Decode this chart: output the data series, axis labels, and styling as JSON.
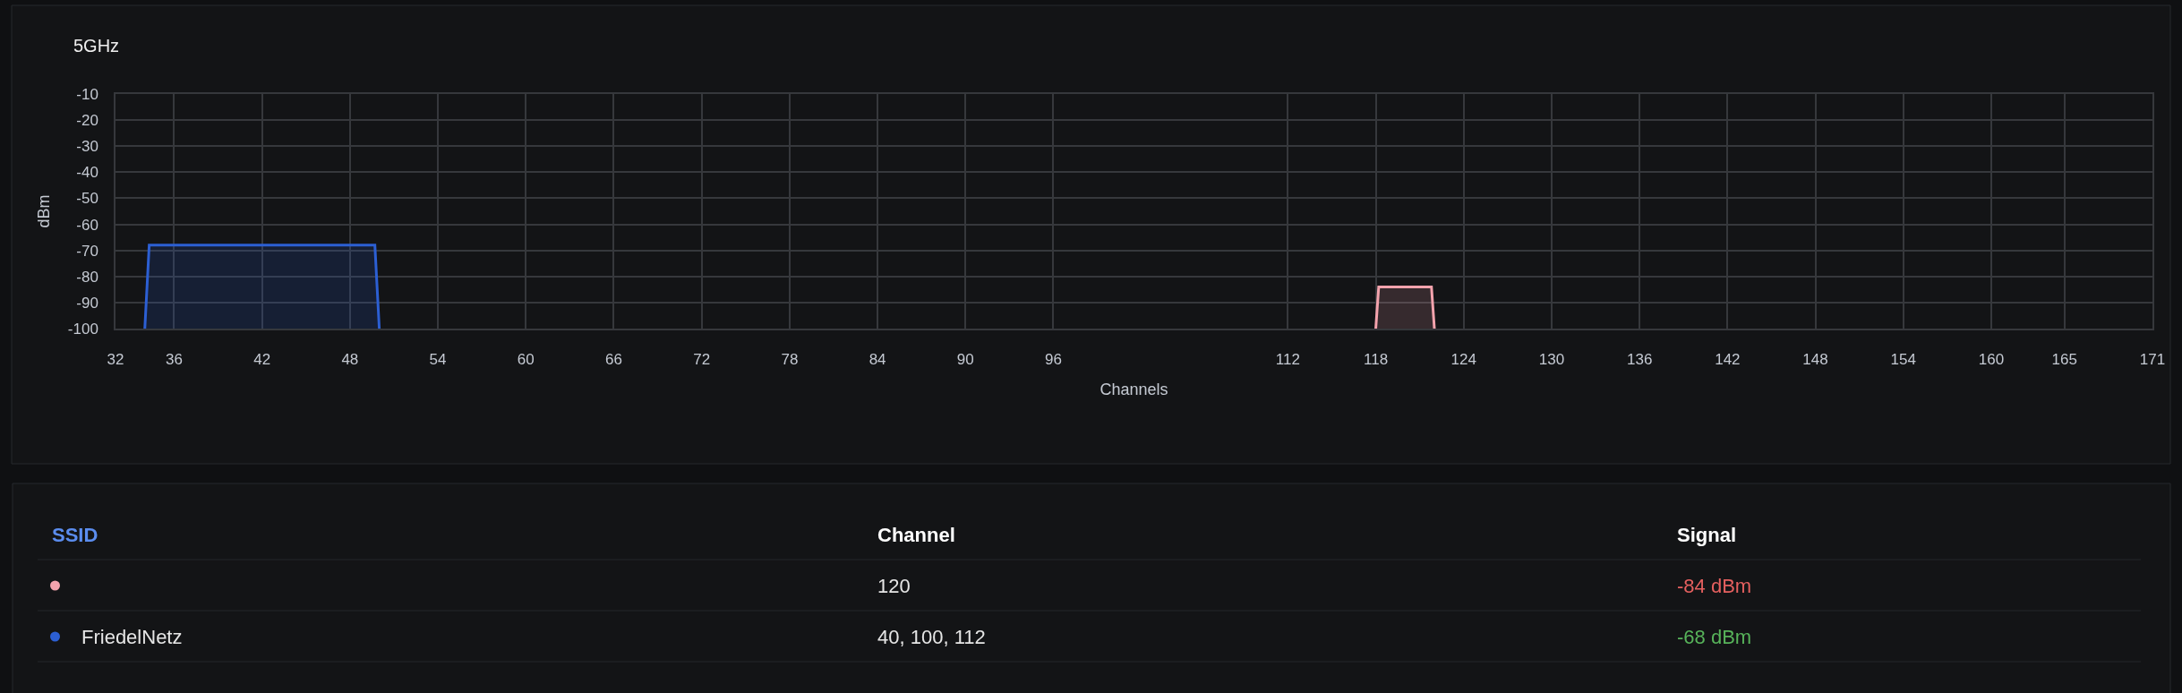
{
  "chart_data": [
    {
      "type": "area",
      "title": "5GHz",
      "xlabel": "Channels",
      "ylabel": "dBm",
      "xlim": [
        32,
        171
      ],
      "xticks": [
        32,
        36,
        42,
        48,
        54,
        60,
        66,
        72,
        78,
        84,
        90,
        96,
        112,
        118,
        124,
        130,
        136,
        142,
        148,
        154,
        160,
        165,
        171
      ],
      "ylim": [
        -100,
        -10
      ],
      "yticks": [
        -100,
        -90,
        -80,
        -70,
        -60,
        -50,
        -40,
        -30,
        -20,
        -10
      ],
      "grid": true,
      "series": [
        {
          "color": "#f4a3ad",
          "x": [
            118,
            118.2,
            121.8,
            122
          ],
          "values": [
            -100,
            -84,
            -84,
            -100
          ]
        },
        {
          "color": "#2c5fd3",
          "x": [
            34,
            34.3,
            49.7,
            50
          ],
          "values": [
            -100,
            -68,
            -68,
            -100
          ]
        }
      ]
    },
    {
      "type": "other",
      "categories": [
        "SSID",
        "Channel",
        "Signal"
      ],
      "series": [
        {
          "values": [
            null,
            null,
            -84
          ],
          "value_labels": [
            null,
            "120",
            "-84 dBm"
          ]
        },
        {
          "name": "FriedelNetz",
          "values": [
            null,
            null,
            -68
          ],
          "value_labels": [
            null,
            "40, 100, 112",
            "-68 dBm"
          ]
        }
      ]
    }
  ]
}
